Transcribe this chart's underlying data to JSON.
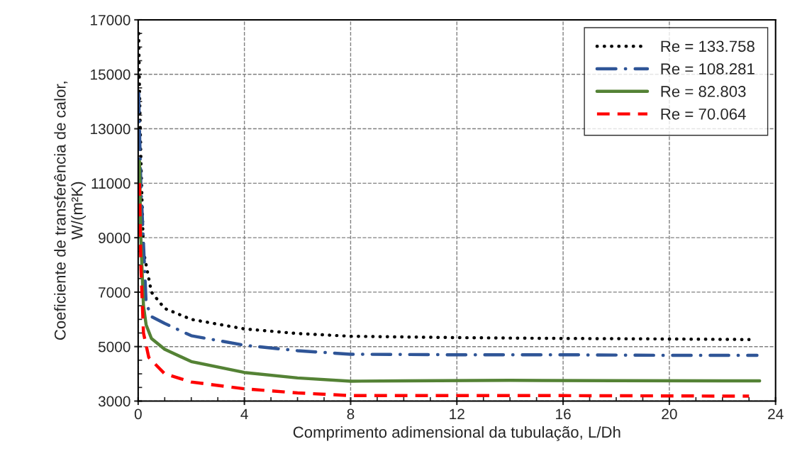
{
  "chart_data": {
    "type": "line",
    "xlabel": "Comprimento adimensional da tubulação, L/Dh",
    "ylabel": "Coeficiente de transferência de calor,\nW/(m²K)",
    "xlim": [
      0,
      24
    ],
    "xticks": [
      0,
      4,
      8,
      12,
      16,
      20,
      24
    ],
    "ylim": [
      3000,
      17000
    ],
    "yticks": [
      3000,
      5000,
      7000,
      9000,
      11000,
      13000,
      15000,
      17000
    ],
    "grid": true,
    "legend": "top right",
    "series": [
      {
        "name": "Re = 133.758",
        "color": "#000000",
        "line_style": "dotted",
        "x": [
          0.02,
          0.05,
          0.1,
          0.2,
          0.5,
          1,
          2,
          4,
          6,
          8,
          12,
          16,
          20,
          23
        ],
        "values": [
          16500,
          14500,
          12000,
          8500,
          7000,
          6400,
          6000,
          5650,
          5480,
          5380,
          5330,
          5300,
          5280,
          5260
        ]
      },
      {
        "name": "Re = 108.281",
        "color": "#2f5597",
        "line_style": "dashdot",
        "x": [
          0.02,
          0.05,
          0.1,
          0.3,
          0.5,
          1,
          2,
          4,
          6,
          8,
          12,
          16,
          20,
          23.3
        ],
        "values": [
          14300,
          13000,
          11000,
          6600,
          6100,
          5850,
          5400,
          5050,
          4850,
          4720,
          4700,
          4700,
          4680,
          4680
        ]
      },
      {
        "name": "Re = 82.803",
        "color": "#548235",
        "line_style": "solid",
        "x": [
          0.05,
          0.1,
          0.2,
          0.3,
          0.5,
          1,
          2,
          4,
          6,
          8,
          10,
          14,
          18,
          23.4
        ],
        "values": [
          11800,
          9000,
          6500,
          5800,
          5300,
          4900,
          4450,
          4050,
          3850,
          3730,
          3740,
          3760,
          3750,
          3740
        ]
      },
      {
        "name": "Re = 70.064",
        "color": "#ff0000",
        "line_style": "dashed",
        "x": [
          0.05,
          0.1,
          0.2,
          0.4,
          1,
          2,
          4,
          6,
          8,
          12,
          16,
          20,
          23
        ],
        "values": [
          11000,
          8000,
          5500,
          4600,
          4000,
          3700,
          3450,
          3300,
          3200,
          3200,
          3200,
          3190,
          3180
        ]
      }
    ]
  }
}
